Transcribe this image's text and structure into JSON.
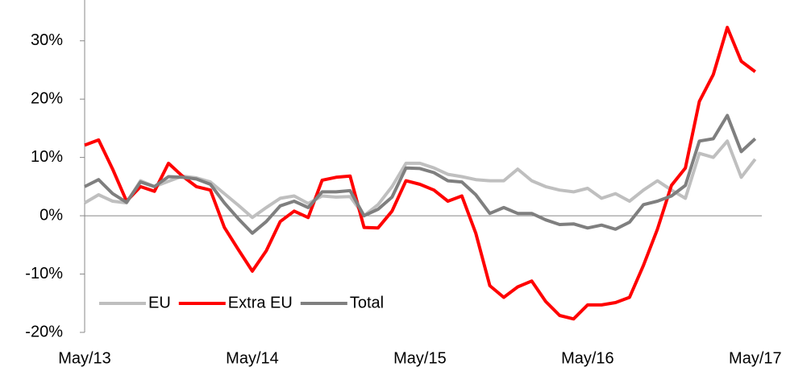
{
  "chart_data": {
    "type": "line",
    "categories": [
      "May/13",
      null,
      null,
      null,
      null,
      null,
      null,
      null,
      null,
      null,
      null,
      null,
      "May/14",
      null,
      null,
      null,
      null,
      null,
      null,
      null,
      null,
      null,
      null,
      null,
      "May/15",
      null,
      null,
      null,
      null,
      null,
      null,
      null,
      null,
      null,
      null,
      null,
      "May/16",
      null,
      null,
      null,
      null,
      null,
      null,
      null,
      null,
      null,
      null,
      null,
      "May/17"
    ],
    "series": [
      {
        "name": "EU",
        "color": "#bfbfbf",
        "values": [
          2.2,
          3.6,
          2.5,
          2.2,
          6,
          5,
          5.9,
          6.8,
          6.5,
          5.8,
          3.8,
          1.8,
          -0.3,
          1.4,
          3,
          3.4,
          2.1,
          3.4,
          3.2,
          3.3,
          0,
          1.9,
          5,
          9,
          9,
          8.2,
          7.1,
          6.7,
          6.2,
          6,
          6,
          8,
          6,
          5,
          4.4,
          4.1,
          4.7,
          3,
          3.8,
          2.5,
          4.4,
          6,
          4.4,
          3,
          10.7,
          10,
          12.8,
          6.6,
          9.7
        ]
      },
      {
        "name": "Extra EU",
        "color": "#ff0000",
        "values": [
          12.1,
          13,
          8,
          2.5,
          5,
          4.2,
          9,
          6.8,
          5,
          4.4,
          -2,
          -5.8,
          -9.5,
          -6,
          -1,
          0.8,
          -0.3,
          6.1,
          6.6,
          6.8,
          -2,
          -2.1,
          0.8,
          6,
          5.4,
          4.4,
          2.5,
          3.4,
          -3,
          -12,
          -14,
          -12.2,
          -11.2,
          -14.7,
          -17.1,
          -17.7,
          -15.3,
          -15.3,
          -14.9,
          -14,
          -8.5,
          -2.3,
          5.2,
          8.2,
          19.6,
          24.2,
          32.3,
          26.5,
          24.7
        ]
      },
      {
        "name": "Total",
        "color": "#7f7f7f",
        "values": [
          5,
          6.2,
          3.8,
          2.3,
          5.8,
          5,
          6.7,
          6.6,
          6.3,
          5.4,
          2.2,
          -0.5,
          -3,
          -1,
          1.7,
          2.5,
          1.4,
          4.1,
          4.1,
          4.3,
          0,
          1.1,
          3.2,
          8.2,
          8.1,
          7.4,
          6,
          5.8,
          3.6,
          0.4,
          1.4,
          0.4,
          0.4,
          -0.7,
          -1.5,
          -1.4,
          -2.1,
          -1.6,
          -2.3,
          -1.1,
          1.9,
          2.5,
          3.4,
          5.2,
          12.8,
          13.2,
          17.2,
          11,
          13.2
        ]
      }
    ],
    "ylim": [
      -20,
      37
    ],
    "yticks": [
      {
        "value": -20,
        "label": "-20%"
      },
      {
        "value": -10,
        "label": "-10%"
      },
      {
        "value": 0,
        "label": "0%"
      },
      {
        "value": 10,
        "label": "10%"
      },
      {
        "value": 20,
        "label": "20%"
      },
      {
        "value": 30,
        "label": "30%"
      }
    ],
    "legend": "lower left",
    "grid": false
  }
}
